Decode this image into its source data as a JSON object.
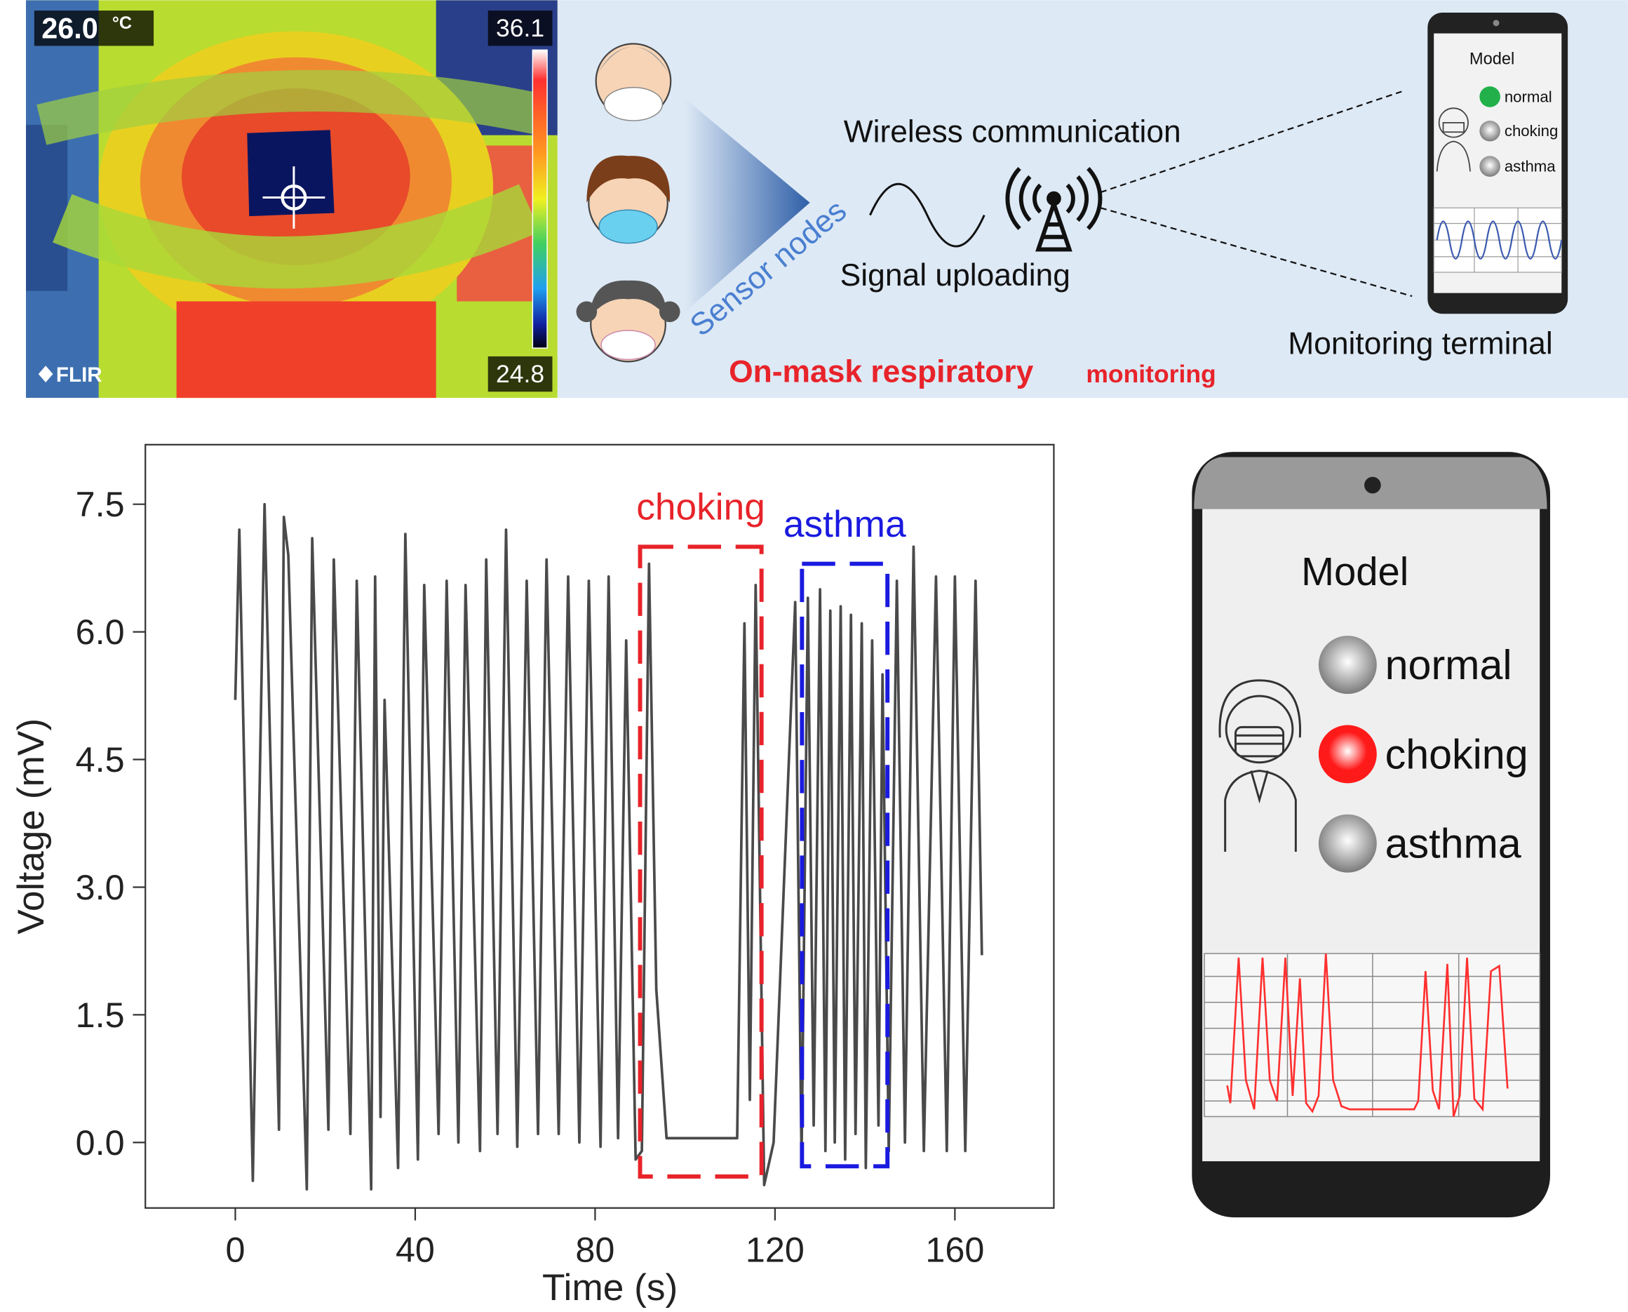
{
  "thermal": {
    "temp": "26.0",
    "unit": "°C",
    "max": "36.1",
    "min": "24.8",
    "brand": "FLIR"
  },
  "diagram": {
    "sensor_label": "Sensor nodes",
    "wireless": "Wireless communication",
    "uploading": "Signal uploading",
    "terminal": "Monitoring terminal",
    "caption_main": "On-mask respiratory",
    "caption_sub": "monitoring",
    "small_phone": {
      "title": "Model",
      "options": [
        "normal",
        "choking",
        "asthma"
      ],
      "active": 0,
      "active_color": "#22b04a"
    }
  },
  "chart_data": {
    "type": "line",
    "xlabel": "Time (s)",
    "ylabel": "Voltage (mV)",
    "color": "#4a4a4a",
    "x": [
      0,
      0.9,
      3.9,
      6.5,
      9.7,
      10.8,
      11.8,
      15.9,
      17.1,
      20.7,
      21.9,
      25.6,
      27.0,
      30.2,
      31.1,
      32.3,
      33.2,
      36.2,
      37.8,
      40.6,
      42.0,
      45.2,
      47.0,
      49.6,
      51.2,
      54.4,
      55.8,
      58.3,
      60.2,
      62.7,
      64.8,
      67.3,
      69.2,
      71.9,
      74.0,
      76.5,
      78.6,
      81.2,
      83.0,
      85.1,
      86.9,
      89.0,
      90.4,
      92.0,
      93.6,
      95.9,
      111.6,
      113.2,
      114.4,
      115.7,
      117.6,
      119.7,
      124.5,
      125.9,
      127.3,
      128.6,
      130.0,
      131.2,
      132.3,
      133.3,
      134.6,
      135.6,
      136.9,
      137.9,
      139.3,
      140.2,
      141.6,
      143.0,
      143.9,
      145.3,
      147.1,
      148.9,
      150.8,
      153.1,
      155.8,
      158.2,
      160.0,
      162.3,
      164.6,
      166.0
    ],
    "values": [
      5.2,
      7.2,
      -0.45,
      7.5,
      0.15,
      7.35,
      6.9,
      -0.55,
      7.1,
      0.15,
      6.85,
      0.1,
      6.6,
      -0.55,
      6.65,
      0.3,
      5.2,
      -0.3,
      7.15,
      -0.2,
      6.55,
      0.1,
      6.6,
      0.0,
      6.55,
      -0.1,
      6.85,
      0.1,
      7.2,
      -0.05,
      6.6,
      0.1,
      6.85,
      0.1,
      6.65,
      0.0,
      6.6,
      -0.05,
      6.65,
      0.05,
      5.9,
      -0.2,
      -0.1,
      6.8,
      1.8,
      0.05,
      0.05,
      6.1,
      0.5,
      6.55,
      -0.5,
      0.0,
      6.35,
      -0.2,
      6.4,
      0.2,
      6.5,
      -0.1,
      6.25,
      0.0,
      6.3,
      -0.2,
      6.2,
      0.1,
      6.1,
      -0.3,
      5.9,
      0.2,
      5.5,
      -0.1,
      6.6,
      0.0,
      7.0,
      -0.1,
      6.65,
      -0.1,
      6.65,
      -0.1,
      6.6,
      2.2
    ],
    "xlim": [
      -20,
      182
    ],
    "ylim": [
      -0.77,
      8.2
    ],
    "xticks": [
      0,
      40,
      80,
      120,
      160
    ],
    "yticks": [
      {
        "value": 0,
        "label": "0.0"
      },
      {
        "value": 1.5,
        "label": "1.5"
      },
      {
        "value": 3,
        "label": "3.0"
      },
      {
        "value": 4.5,
        "label": "4.5"
      },
      {
        "value": 6,
        "label": "6.0"
      },
      {
        "value": 7.5,
        "label": "7.5"
      }
    ],
    "annotations": [
      {
        "text": "choking",
        "color": "#e8232a",
        "x": [
          90,
          117
        ],
        "y": [
          -0.4,
          7.0
        ]
      },
      {
        "text": "asthma",
        "color": "#1a1ae0",
        "x": [
          126,
          145
        ],
        "y": [
          -0.28,
          6.8
        ]
      }
    ]
  },
  "phone": {
    "title": "Model",
    "options": [
      "normal",
      "choking",
      "asthma"
    ],
    "active": 1,
    "active_color": "#ff1a1a"
  }
}
